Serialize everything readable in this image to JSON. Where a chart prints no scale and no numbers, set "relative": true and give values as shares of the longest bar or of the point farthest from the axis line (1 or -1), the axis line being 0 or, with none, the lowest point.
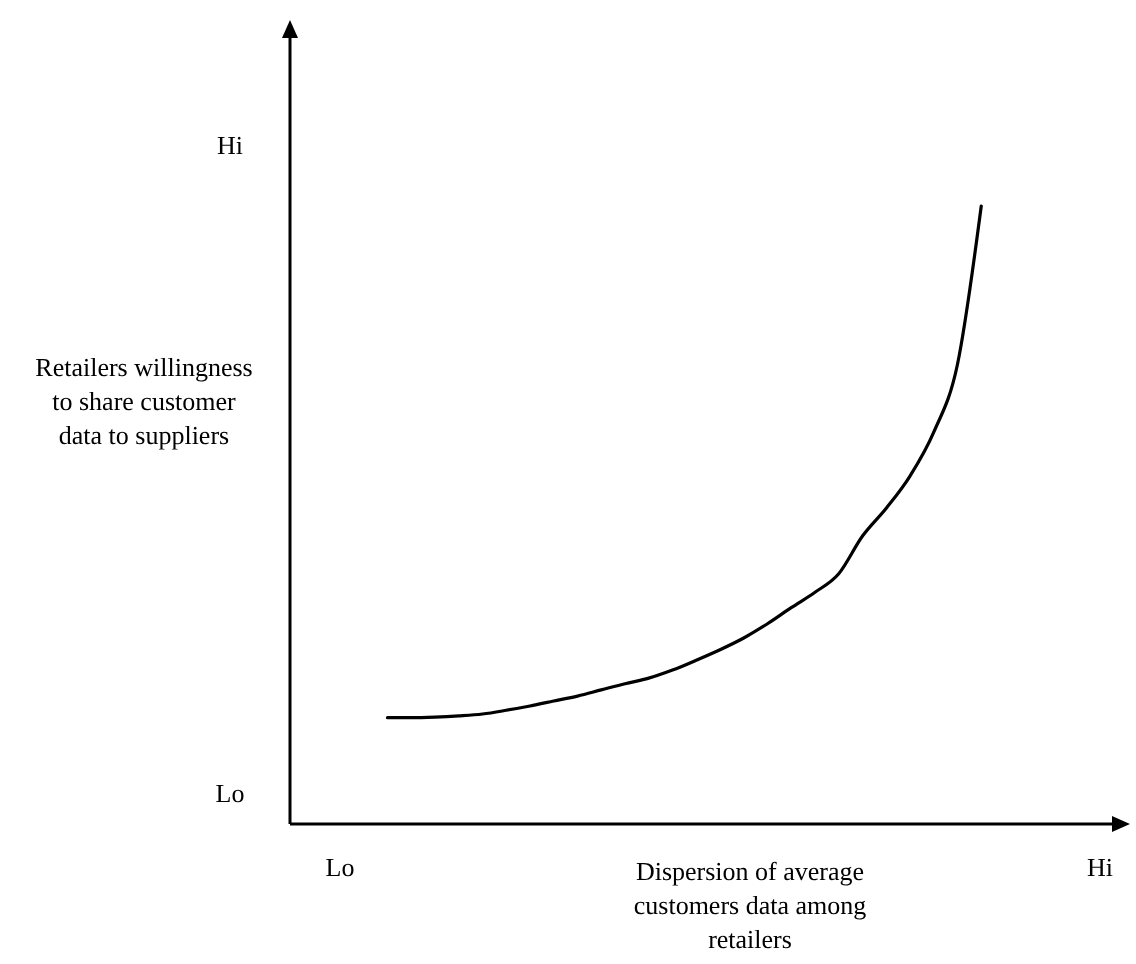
{
  "chart_data": {
    "type": "line",
    "relative": true,
    "xlabel": "Dispersion of average customers data among retailers",
    "ylabel": "Retailers willingness to share customer data to suppliers",
    "categories": [
      "Lo",
      null,
      null,
      null,
      null,
      null,
      null,
      null,
      null,
      null,
      null,
      null,
      null,
      null,
      null,
      null,
      null,
      null,
      null,
      null,
      null,
      null,
      null,
      null,
      null,
      null,
      null,
      null,
      null,
      null,
      null,
      null,
      "Hi"
    ],
    "values": [
      null,
      null,
      0.172,
      0.172,
      0.173,
      0.175,
      0.178,
      0.184,
      0.191,
      0.199,
      0.207,
      0.217,
      0.227,
      0.236,
      0.249,
      0.265,
      0.282,
      0.301,
      0.324,
      0.35,
      0.375,
      0.405,
      0.466,
      0.511,
      0.563,
      0.634,
      0.744,
      1,
      null,
      null,
      null,
      null,
      null
    ],
    "color": "#000000",
    "annotations": [
      "Hi",
      "Lo"
    ]
  }
}
